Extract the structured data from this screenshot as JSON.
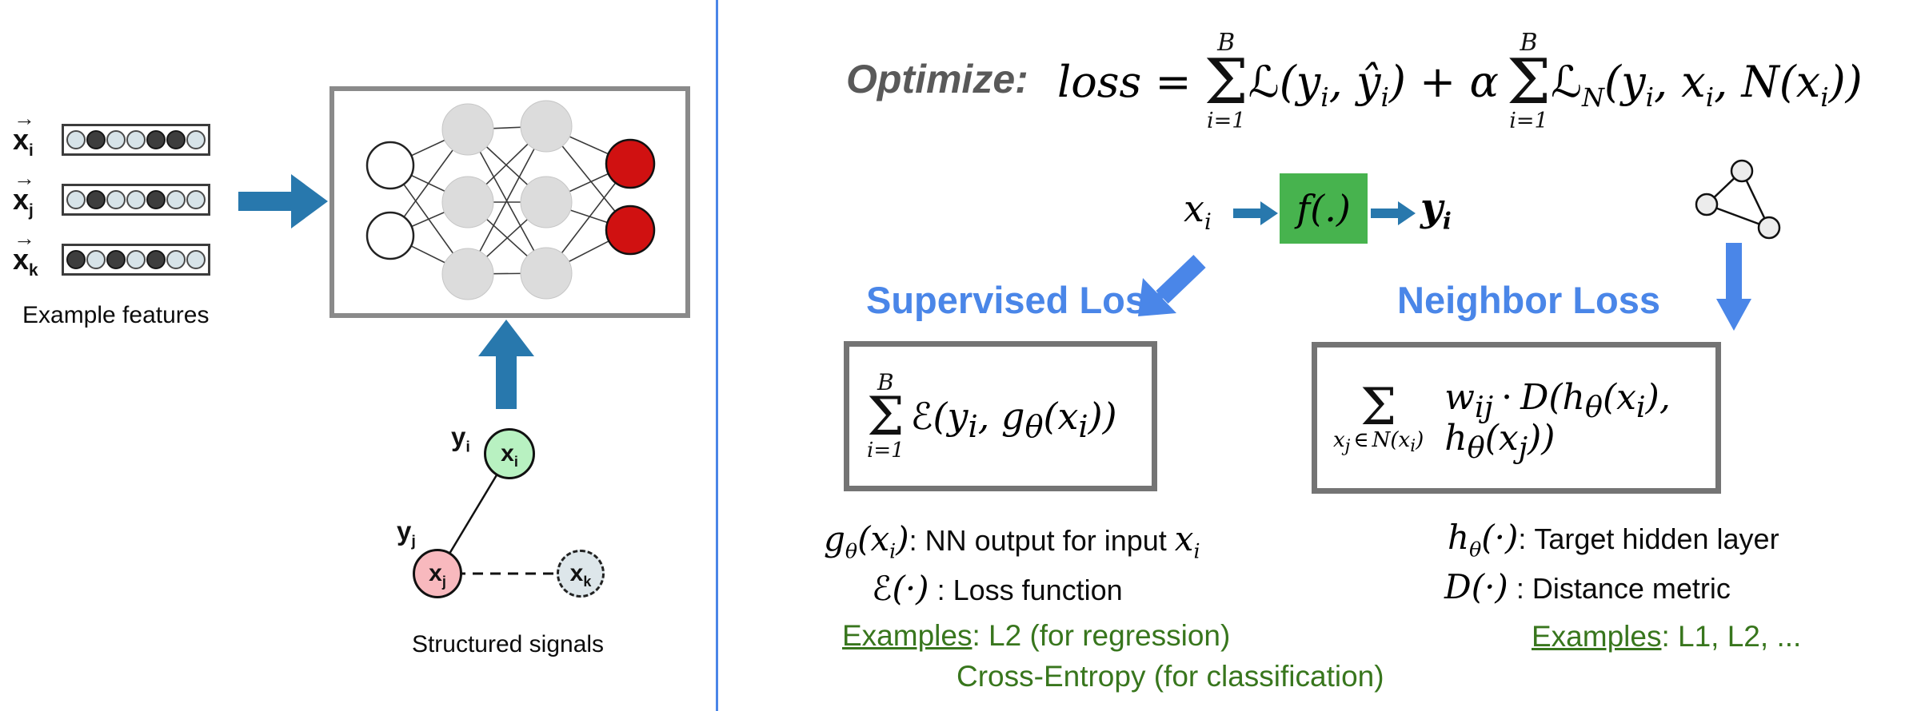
{
  "colors": {
    "accent_blue": "#4a86e8",
    "arrow_teal_blue": "#2878ad",
    "green_box": "#47b34e",
    "output_node_red": "#d01111",
    "hidden_node_gray": "#dcdcdc",
    "examples_green": "#38761d",
    "node_green": "#b8f1c1",
    "node_pink": "#f8b9be",
    "node_gray": "#dde6ea",
    "divider_blue": "#4a86e8"
  },
  "left_panel": {
    "vector_arrow_glyph": "→",
    "vectors": [
      {
        "name": "x",
        "sub": "i",
        "cells": [
          0,
          1,
          0,
          0,
          1,
          1,
          0
        ]
      },
      {
        "name": "x",
        "sub": "j",
        "cells": [
          0,
          1,
          0,
          0,
          1,
          0,
          0
        ]
      },
      {
        "name": "x",
        "sub": "k",
        "cells": [
          1,
          0,
          1,
          0,
          1,
          0,
          0
        ]
      }
    ],
    "vectors_caption": "Example features",
    "nn": {
      "input_nodes": 2,
      "hidden_layer1_nodes": 3,
      "hidden_layer2_nodes": 3,
      "output_nodes": 2
    },
    "graph": {
      "node_i": {
        "label": "x",
        "sub": "i",
        "annotation": "y",
        "annotation_sub": "i"
      },
      "node_j": {
        "label": "x",
        "sub": "j",
        "annotation": "y",
        "annotation_sub": "j"
      },
      "node_k": {
        "label": "x",
        "sub": "k"
      },
      "caption": "Structured signals"
    }
  },
  "right_panel": {
    "optimize_label": "Optimize:",
    "loss_formula": {
      "lhs": "loss =",
      "sum1": {
        "up": "B",
        "sg": "Σ",
        "lo": "i=1"
      },
      "L1": "ℒ",
      "a": "(y",
      "as": "i",
      "b": ", ŷ",
      "bs": "i",
      "c": ") + α",
      "sum2": {
        "up": "B",
        "sg": "Σ",
        "lo": "i=1"
      },
      "L2": "ℒ",
      "L2s": "N",
      "d": "(y",
      "ds": "i",
      "e": ", x",
      "es": "i",
      "f": ", ",
      "g": "N",
      "h": "(x",
      "hs": "i",
      "i": "))"
    },
    "flow": {
      "input": "x",
      "input_sub": "i",
      "box_label": "f(.)",
      "output": "y",
      "output_sub": "i"
    },
    "supervised": {
      "heading": "Supervised Loss",
      "box_formula": {
        "sum": {
          "up": "B",
          "sg": "Σ",
          "lo": "i=1"
        },
        "sc": "ℰ",
        "a": "(y",
        "as": "i",
        "b": ", g",
        "bs": "θ",
        "c": "(x",
        "cs": "i",
        "d": "))"
      },
      "def1": {
        "m1": "g",
        "m1s": "θ",
        "m2": "(x",
        "m2s": "i",
        "m3": ")",
        "text": ": NN output for input ",
        "tm": "x",
        "tms": "i"
      },
      "def2": {
        "sc": "ℰ",
        "m": "(·)",
        "text": " : Loss function"
      },
      "examples_label": "Examples",
      "examples_line1": ": L2 (for regression)",
      "examples_line2": "Cross-Entropy (for classification)"
    },
    "neighbor": {
      "heading": "Neighbor Loss",
      "box_formula": {
        "sg": "Σ",
        "la": "x",
        "las": "j",
        "lb": "∈",
        "lc": "N",
        "ld": "(x",
        "lds": "i",
        "le": ")",
        "a": "w",
        "as": "ij",
        "b": "·",
        "c": "D",
        "d": "(h",
        "ds": "θ",
        "e": "(x",
        "es": "i",
        "f": "), h",
        "fs": "θ",
        "g": "(x",
        "gs": "j",
        "h": "))"
      },
      "def1": {
        "m1": "h",
        "m1s": "θ",
        "m2": "(·)",
        "text": ": Target hidden layer"
      },
      "def2": {
        "cal": "D",
        "m": "(·)",
        "text": " : Distance metric"
      },
      "examples_label": "Examples",
      "examples_line1": ": L1, L2, ..."
    }
  }
}
